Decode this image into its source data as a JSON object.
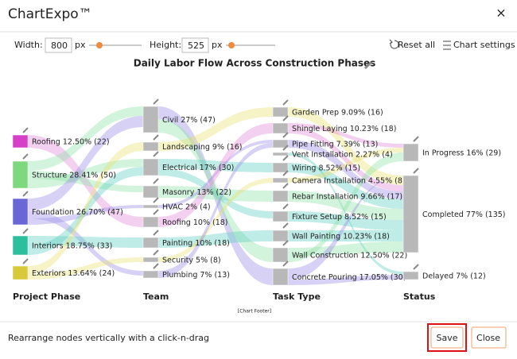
{
  "header": {
    "title": "ChartExpo™",
    "close": "×"
  },
  "toolbar": {
    "width_label": "Width:",
    "width_value": 800,
    "width_unit": "px",
    "height_label": "Height:",
    "height_value": 525,
    "height_unit": "px",
    "reset": "Reset all",
    "settings": "Chart settings"
  },
  "chart": {
    "title": "Daily Labor Flow Across Construction Phases",
    "columns": [
      {
        "name": "Project Phase",
        "nodes": [
          "Roofing 12.50% (22)",
          "Structure 28.41% (50)",
          "Foundation 26.70% (47)",
          "Interiors 18.75% (33)",
          "Exteriors 13.64% (24)"
        ]
      },
      {
        "name": "Team",
        "nodes": [
          "Civil 27% (47)",
          "Landscaping 9% (16)",
          "Electrical 17% (30)",
          "Masonry 13% (22)",
          "HVAC 2% (4)",
          "Roofing 10% (18)",
          "Painting 10% (18)",
          "Security 5% (8)",
          "Plumbing 7% (13)"
        ]
      },
      {
        "name": "Task Type",
        "nodes": [
          "Garden Prep 9.09% (16)",
          "Shingle Laying 10.23% (18)",
          "Pipe Fitting 7.39% (13)",
          "Vent Installation 2.27% (4)",
          "Wiring 8.52% (15)",
          "Camera Installation 4.55% (8)",
          "Rebar Installation 9.66% (17)",
          "Fixture Setup 8.52% (15)",
          "Wall Painting 10.23% (18)",
          "Wall Construction 12.50% (22)",
          "Concrete Pouring 17.05% (30)"
        ]
      },
      {
        "name": "Status",
        "nodes": [
          "In Progress 16% (29)",
          "Completed 77% (135)",
          "Delayed 7% (12)"
        ]
      }
    ],
    "footer": "[Chart Footer]"
  },
  "footer": {
    "hint": "Rearrange nodes vertically with a click-n-drag",
    "save": "Save",
    "close": "Close"
  }
}
